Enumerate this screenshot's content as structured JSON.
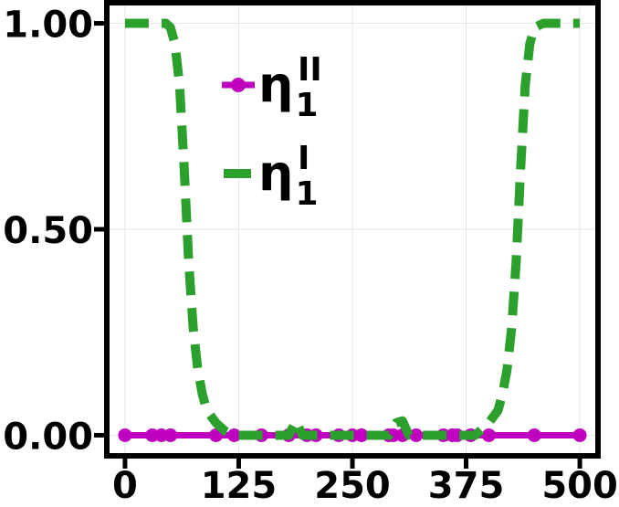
{
  "chart_data": {
    "type": "line",
    "title": "",
    "xlabel": "",
    "ylabel": "",
    "xlim": [
      -20,
      520
    ],
    "ylim": [
      -0.05,
      1.05
    ],
    "xticks": [
      0,
      125,
      250,
      375,
      500
    ],
    "xtick_labels": [
      "0",
      "125",
      "250",
      "375",
      "500"
    ],
    "yticks": [
      0,
      0.5,
      1
    ],
    "ytick_labels": [
      "0.00",
      "0.50",
      "1.00"
    ],
    "grid": true,
    "legend_position": "upper-left",
    "series": [
      {
        "name": "eta_1^II",
        "legend_main": "η",
        "legend_sub": "1",
        "legend_sup": "II",
        "color": "#bf00bf",
        "style": "solid-with-markers",
        "x": [
          0,
          30,
          40,
          50,
          100,
          120,
          150,
          180,
          200,
          210,
          235,
          250,
          260,
          290,
          295,
          305,
          320,
          350,
          360,
          365,
          380,
          400,
          450,
          500
        ],
        "y": [
          0,
          0,
          0,
          0,
          0,
          0,
          0,
          0,
          0,
          0,
          0,
          0,
          0,
          0,
          0,
          0,
          0,
          0,
          0,
          0,
          0,
          0,
          0,
          0
        ]
      },
      {
        "name": "eta_1^I",
        "legend_main": "η",
        "legend_sub": "1",
        "legend_sup": "I",
        "color": "#2ca02c",
        "style": "dashed",
        "x": [
          0,
          40,
          45,
          50,
          55,
          60,
          65,
          70,
          75,
          80,
          85,
          90,
          100,
          110,
          120,
          150,
          180,
          188,
          195,
          205,
          250,
          290,
          298,
          305,
          312,
          320,
          370,
          385,
          390,
          400,
          410,
          415,
          420,
          425,
          430,
          435,
          440,
          445,
          450,
          460,
          500
        ],
        "y": [
          1,
          1,
          1,
          0.99,
          0.95,
          0.85,
          0.65,
          0.42,
          0.26,
          0.16,
          0.1,
          0.06,
          0.03,
          0.01,
          0.0,
          0.0,
          0.0,
          0.035,
          0.0,
          0.0,
          0.0,
          0.0,
          0.03,
          0.035,
          0.0,
          0.0,
          0.0,
          0.0,
          0.01,
          0.03,
          0.06,
          0.1,
          0.16,
          0.26,
          0.42,
          0.65,
          0.85,
          0.95,
          0.99,
          1,
          1
        ]
      }
    ]
  }
}
